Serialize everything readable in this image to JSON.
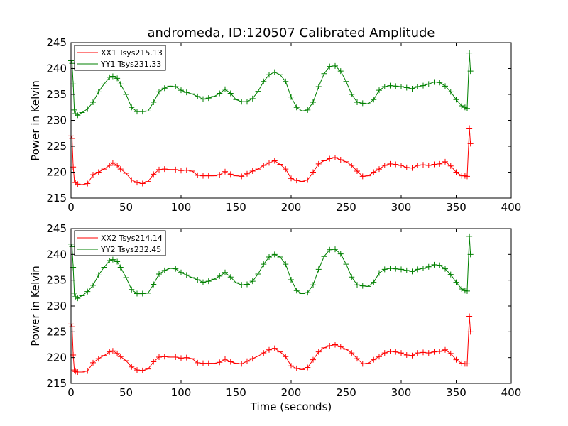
{
  "chart_data": [
    {
      "type": "line",
      "title": "andromeda, ID:120507 Calibrated Amplitude",
      "xlabel": "",
      "ylabel": "Power in Kelvin",
      "xlim": [
        0,
        400
      ],
      "ylim": [
        215,
        245
      ],
      "xticks": [
        "0",
        "50",
        "100",
        "150",
        "200",
        "250",
        "300",
        "350",
        "400"
      ],
      "yticks": [
        "215",
        "220",
        "225",
        "230",
        "235",
        "240",
        "245"
      ],
      "grid": false,
      "legend": "top-left",
      "series": [
        {
          "name": "XX1 Tsys215.13",
          "color": "#ff0000",
          "x": [
            0,
            1,
            2,
            3,
            4,
            6,
            10,
            15,
            20,
            25,
            30,
            35,
            38,
            42,
            45,
            50,
            55,
            60,
            65,
            70,
            75,
            80,
            85,
            90,
            95,
            100,
            105,
            110,
            115,
            120,
            125,
            130,
            135,
            140,
            145,
            150,
            155,
            160,
            165,
            170,
            175,
            180,
            185,
            190,
            195,
            200,
            205,
            210,
            215,
            220,
            225,
            230,
            235,
            240,
            245,
            250,
            255,
            260,
            265,
            270,
            275,
            280,
            285,
            290,
            295,
            300,
            305,
            310,
            315,
            320,
            325,
            330,
            335,
            340,
            345,
            350,
            355,
            358,
            360,
            362,
            363
          ],
          "y": [
            227,
            226.5,
            221,
            218.5,
            218,
            217.7,
            217.6,
            217.8,
            219.5,
            220,
            220.6,
            221.3,
            221.8,
            221.3,
            220.6,
            219.8,
            218.5,
            218,
            217.8,
            218.2,
            219.6,
            220.5,
            220.6,
            220.5,
            220.5,
            220.3,
            220.4,
            220.2,
            219.4,
            219.3,
            219.3,
            219.3,
            219.5,
            220.1,
            219.6,
            219.3,
            219.2,
            219.7,
            220.2,
            220.6,
            221.3,
            221.8,
            222.2,
            221.5,
            220.6,
            218.8,
            218.4,
            218.2,
            218.5,
            220,
            221.6,
            222.2,
            222.6,
            222.8,
            222.4,
            222,
            221.3,
            220.2,
            219.2,
            219.3,
            220,
            220.6,
            221.3,
            221.6,
            221.5,
            221.3,
            220.9,
            220.8,
            221.3,
            221.4,
            221.3,
            221.5,
            221.6,
            222,
            221.2,
            220,
            219.3,
            219.3,
            219.2,
            228.5,
            225.5
          ]
        },
        {
          "name": "YY1 Tsys231.33",
          "color": "#008000",
          "x": [
            0,
            1,
            2,
            3,
            4,
            6,
            10,
            15,
            20,
            25,
            30,
            35,
            38,
            42,
            45,
            50,
            55,
            60,
            65,
            70,
            75,
            80,
            85,
            90,
            95,
            100,
            105,
            110,
            115,
            120,
            125,
            130,
            135,
            140,
            145,
            150,
            155,
            160,
            165,
            170,
            175,
            180,
            185,
            190,
            195,
            200,
            205,
            210,
            215,
            220,
            225,
            230,
            235,
            240,
            245,
            250,
            255,
            260,
            265,
            270,
            275,
            280,
            285,
            290,
            295,
            300,
            305,
            310,
            315,
            320,
            325,
            330,
            335,
            340,
            345,
            350,
            355,
            358,
            360,
            362,
            363
          ],
          "y": [
            241.5,
            241,
            237,
            232,
            231.3,
            231,
            231.5,
            232.2,
            233.5,
            235.5,
            237,
            238.3,
            238.5,
            238.1,
            237,
            235,
            232.5,
            231.7,
            231.7,
            231.8,
            233.5,
            235.5,
            236.2,
            236.6,
            236.5,
            235.8,
            235.4,
            235.1,
            234.6,
            234.1,
            234.3,
            234.6,
            235.2,
            236,
            235.2,
            234,
            233.6,
            233.6,
            234.2,
            235.6,
            237.5,
            238.8,
            239.3,
            238.8,
            237.5,
            234.5,
            232.5,
            231.8,
            232,
            233.5,
            236.5,
            239,
            240.4,
            240.5,
            239.5,
            237.5,
            235,
            233.5,
            233.3,
            233.2,
            234,
            235.8,
            236.5,
            236.7,
            236.6,
            236.5,
            236.3,
            236.1,
            236.5,
            236.7,
            237,
            237.4,
            237.3,
            236.6,
            235.5,
            234,
            232.8,
            232.5,
            232.3,
            243,
            239.5
          ]
        }
      ]
    },
    {
      "type": "line",
      "title": "",
      "xlabel": "Time (seconds)",
      "ylabel": "Power in Kelvin",
      "xlim": [
        0,
        400
      ],
      "ylim": [
        215,
        245
      ],
      "xticks": [
        "0",
        "50",
        "100",
        "150",
        "200",
        "250",
        "300",
        "350",
        "400"
      ],
      "yticks": [
        "215",
        "220",
        "225",
        "230",
        "235",
        "240",
        "245"
      ],
      "grid": false,
      "legend": "top-left",
      "series": [
        {
          "name": "XX2 Tsys214.14",
          "color": "#ff0000",
          "x": [
            0,
            1,
            2,
            3,
            4,
            6,
            10,
            15,
            20,
            25,
            30,
            35,
            38,
            42,
            45,
            50,
            55,
            60,
            65,
            70,
            75,
            80,
            85,
            90,
            95,
            100,
            105,
            110,
            115,
            120,
            125,
            130,
            135,
            140,
            145,
            150,
            155,
            160,
            165,
            170,
            175,
            180,
            185,
            190,
            195,
            200,
            205,
            210,
            215,
            220,
            225,
            230,
            235,
            240,
            245,
            250,
            255,
            260,
            265,
            270,
            275,
            280,
            285,
            290,
            295,
            300,
            305,
            310,
            315,
            320,
            325,
            330,
            335,
            340,
            345,
            350,
            355,
            358,
            360,
            362,
            363
          ],
          "y": [
            226.5,
            226,
            220.5,
            217.6,
            217.3,
            217.2,
            217.2,
            217.4,
            219,
            219.8,
            220.4,
            221.1,
            221.3,
            220.8,
            220.2,
            219.4,
            218.2,
            217.6,
            217.5,
            217.8,
            219.2,
            220.1,
            220.2,
            220.1,
            220.1,
            219.9,
            220,
            219.8,
            219,
            218.9,
            218.9,
            218.9,
            219.1,
            219.7,
            219.2,
            218.9,
            218.8,
            219.3,
            219.8,
            220.3,
            220.9,
            221.5,
            221.8,
            221.1,
            220.2,
            218.4,
            217.9,
            217.7,
            218.1,
            219.6,
            221.1,
            221.9,
            222.3,
            222.5,
            222.1,
            221.6,
            220.9,
            219.8,
            218.8,
            218.9,
            219.6,
            220.2,
            220.9,
            221.2,
            221.1,
            220.9,
            220.5,
            220.4,
            220.9,
            221,
            220.9,
            221.1,
            221.2,
            221.5,
            220.8,
            219.6,
            218.9,
            218.8,
            218.8,
            228,
            225
          ]
        },
        {
          "name": "YY2 Tsys232.45",
          "color": "#008000",
          "x": [
            0,
            1,
            2,
            3,
            4,
            6,
            10,
            15,
            20,
            25,
            30,
            35,
            38,
            42,
            45,
            50,
            55,
            60,
            65,
            70,
            75,
            80,
            85,
            90,
            95,
            100,
            105,
            110,
            115,
            120,
            125,
            130,
            135,
            140,
            145,
            150,
            155,
            160,
            165,
            170,
            175,
            180,
            185,
            190,
            195,
            200,
            205,
            210,
            215,
            220,
            225,
            230,
            235,
            240,
            245,
            250,
            255,
            260,
            265,
            270,
            275,
            280,
            285,
            290,
            295,
            300,
            305,
            310,
            315,
            320,
            325,
            330,
            335,
            340,
            345,
            350,
            355,
            358,
            360,
            362,
            363
          ],
          "y": [
            242,
            241.5,
            237.5,
            232.5,
            231.8,
            231.5,
            232,
            232.8,
            234,
            236,
            237.5,
            238.8,
            239,
            238.6,
            237.5,
            235.5,
            233.2,
            232.4,
            232.4,
            232.5,
            234.2,
            236.2,
            236.9,
            237.3,
            237.2,
            236.5,
            236,
            235.5,
            235.1,
            234.6,
            234.8,
            235.2,
            235.8,
            236.5,
            235.6,
            234.5,
            234.1,
            234.2,
            234.8,
            236.2,
            238.1,
            239.5,
            240,
            239.5,
            238.1,
            235.1,
            233,
            232.4,
            232.6,
            234.1,
            237.1,
            239.6,
            240.9,
            241,
            240.1,
            238.1,
            235.6,
            234.1,
            233.9,
            233.8,
            234.6,
            236.4,
            237.1,
            237.3,
            237.2,
            237.1,
            236.9,
            236.7,
            237.1,
            237.3,
            237.6,
            238,
            237.9,
            237.2,
            236.1,
            234.6,
            233.3,
            233,
            232.9,
            243.5,
            240
          ]
        }
      ]
    }
  ]
}
